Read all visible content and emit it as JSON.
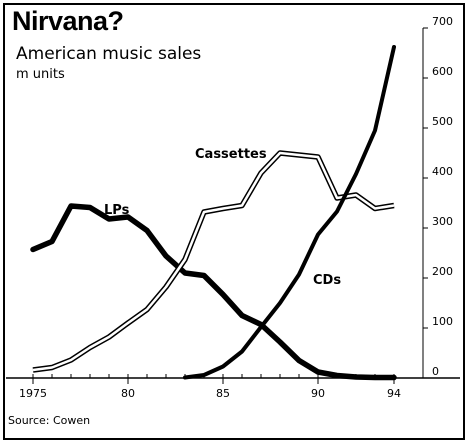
{
  "chart_data": {
    "type": "line",
    "title": "Nirvana?",
    "subtitle": "American music sales",
    "ylabel": "m units",
    "source": "Source: Cowen",
    "xlim": [
      1975,
      1994
    ],
    "ylim": [
      0,
      700
    ],
    "y_ticks": [
      0,
      100,
      200,
      300,
      400,
      500,
      600,
      700
    ],
    "x_tick_labels": [
      {
        "value": 1975,
        "label": "1975"
      },
      {
        "value": 1980,
        "label": "80"
      },
      {
        "value": 1985,
        "label": "85"
      },
      {
        "value": 1990,
        "label": "90"
      },
      {
        "value": 1994,
        "label": "94"
      }
    ],
    "grid": false,
    "y_axis_side": "right",
    "series": [
      {
        "name": "LPs",
        "style": "thick-solid",
        "x": [
          1975,
          1976,
          1977,
          1978,
          1979,
          1980,
          1981,
          1982,
          1983,
          1984,
          1985,
          1986,
          1987,
          1988,
          1989,
          1990,
          1991,
          1992,
          1993,
          1994
        ],
        "y": [
          257,
          273,
          344,
          341,
          318,
          322,
          295,
          244,
          210,
          205,
          167,
          125,
          107,
          72,
          35,
          12,
          5,
          2,
          1,
          1
        ]
      },
      {
        "name": "Cassettes",
        "style": "double-outline",
        "x": [
          1975,
          1976,
          1977,
          1978,
          1979,
          1980,
          1981,
          1982,
          1983,
          1984,
          1985,
          1986,
          1987,
          1988,
          1989,
          1990,
          1991,
          1992,
          1993,
          1994
        ],
        "y": [
          16,
          21,
          36,
          61,
          82,
          110,
          137,
          182,
          237,
          332,
          339,
          345,
          410,
          450,
          446,
          442,
          360,
          366,
          339,
          345
        ]
      },
      {
        "name": "CDs",
        "style": "medium-solid",
        "x": [
          1983,
          1984,
          1985,
          1986,
          1987,
          1988,
          1989,
          1990,
          1991,
          1992,
          1993,
          1994
        ],
        "y": [
          1,
          6,
          23,
          53,
          102,
          150,
          207,
          287,
          333,
          408,
          495,
          662
        ]
      }
    ]
  }
}
